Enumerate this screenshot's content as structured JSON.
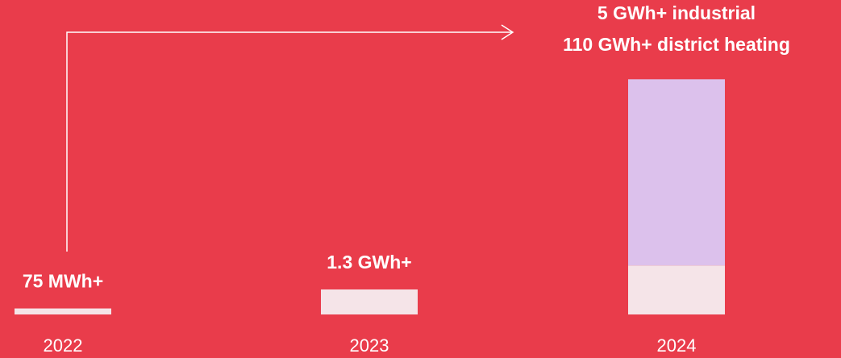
{
  "chart_data": {
    "type": "bar",
    "stacked": true,
    "scale": "sqrt",
    "categories": [
      "2022",
      "2023",
      "2024"
    ],
    "series": [
      {
        "color": "#f5e4e8",
        "values": [
          0.075,
          1.3,
          5
        ],
        "value_labels": [
          "75 MWh+",
          "1.3 GWh+",
          "5 GWh+ industrial"
        ]
      },
      {
        "color": "#dcc1ec",
        "values": [
          null,
          null,
          110
        ],
        "value_labels": [
          null,
          null,
          "110 GWh+ district heating"
        ]
      }
    ]
  }
}
